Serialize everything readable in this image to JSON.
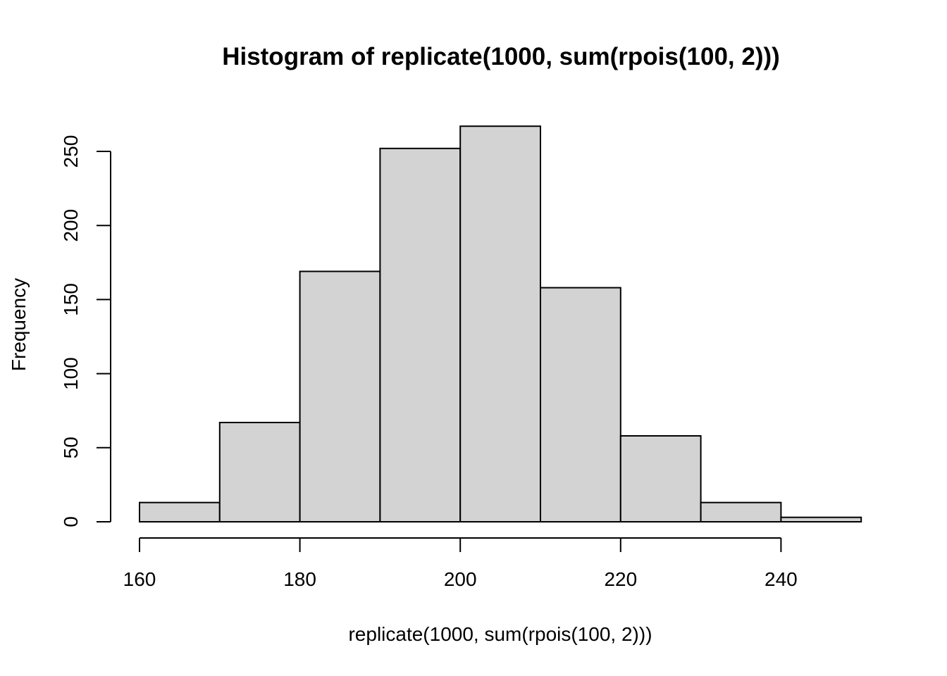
{
  "chart_data": {
    "type": "bar",
    "title": "Histogram of replicate(1000, sum(rpois(100, 2)))",
    "xlabel": "replicate(1000, sum(rpois(100, 2)))",
    "ylabel": "Frequency",
    "bins": [
      {
        "x0": 160,
        "x1": 170,
        "count": 13
      },
      {
        "x0": 170,
        "x1": 180,
        "count": 67
      },
      {
        "x0": 180,
        "x1": 190,
        "count": 169
      },
      {
        "x0": 190,
        "x1": 200,
        "count": 252
      },
      {
        "x0": 200,
        "x1": 210,
        "count": 267
      },
      {
        "x0": 210,
        "x1": 220,
        "count": 158
      },
      {
        "x0": 220,
        "x1": 230,
        "count": 58
      },
      {
        "x0": 230,
        "x1": 240,
        "count": 13
      },
      {
        "x0": 240,
        "x1": 250,
        "count": 3
      }
    ],
    "xticks": [
      160,
      180,
      200,
      220,
      240
    ],
    "yticks": [
      0,
      50,
      100,
      150,
      200,
      250
    ],
    "xlim": [
      160,
      250
    ],
    "ylim": [
      0,
      267
    ],
    "grid": false,
    "legend": false,
    "colors": {
      "bar_fill": "#d3d3d3",
      "bar_stroke": "#000000"
    }
  }
}
